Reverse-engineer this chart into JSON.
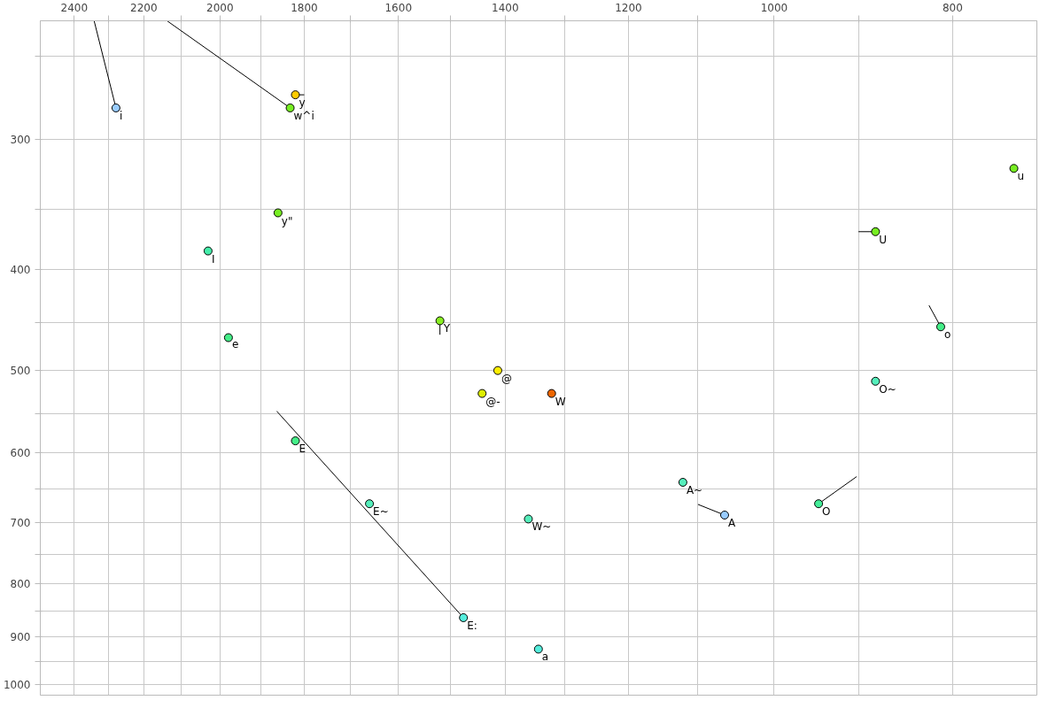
{
  "chart_data": {
    "type": "scatter",
    "log": "xy",
    "marker": "circle",
    "grid": true,
    "xlim": [
      2504,
      720
    ],
    "ylim": [
      1024,
      231
    ],
    "xticks": [
      2400,
      {
        "value": 2300,
        "label": null
      },
      2200,
      {
        "value": 2100,
        "label": null
      },
      2000,
      {
        "value": 1900,
        "label": null
      },
      1800,
      {
        "value": 1700,
        "label": null
      },
      1600,
      {
        "value": 1500,
        "label": null
      },
      1400,
      {
        "value": 1300,
        "label": null
      },
      1200,
      {
        "value": 1100,
        "label": null
      },
      1000,
      {
        "value": 900,
        "label": null
      },
      800
    ],
    "yticks": [
      {
        "value": 250,
        "label": null
      },
      300,
      {
        "value": 350,
        "label": null
      },
      400,
      {
        "value": 450,
        "label": null
      },
      500,
      {
        "value": 550,
        "label": null
      },
      600,
      {
        "value": 650,
        "label": null
      },
      700,
      {
        "value": 750,
        "label": null
      },
      800,
      {
        "value": 850,
        "label": null
      },
      900,
      {
        "value": 950,
        "label": null
      },
      1000
    ],
    "series": [
      {
        "type": "line",
        "marker": "none",
        "color": "#000000",
        "x": [
          2341,
          2278
        ],
        "values": [
          231,
          280
        ]
      },
      {
        "type": "line",
        "marker": "none",
        "color": "#000000",
        "x": [
          1820,
          1800
        ],
        "values": [
          272,
          272
        ]
      },
      {
        "type": "line",
        "marker": "none",
        "color": "#000000",
        "x": [
          2137,
          1832
        ],
        "values": [
          231,
          280
        ]
      },
      {
        "type": "line",
        "marker": "none",
        "color": "#000000",
        "x": [
          1519,
          1519
        ],
        "values": [
          448,
          462
        ]
      },
      {
        "type": "line",
        "marker": "none",
        "color": "#000000",
        "x": [
          1863,
          1475
        ],
        "values": [
          547,
          863
        ]
      },
      {
        "type": "line",
        "marker": "none",
        "color": "#000000",
        "x": [
          1100,
          1064
        ],
        "values": [
          672,
          688
        ]
      },
      {
        "type": "line",
        "marker": "none",
        "color": "#000000",
        "x": [
          902,
          946
        ],
        "values": [
          632,
          671
        ]
      },
      {
        "type": "line",
        "marker": "none",
        "color": "#000000",
        "x": [
          824,
          812
        ],
        "values": [
          433,
          454
        ]
      },
      {
        "type": "line",
        "marker": "none",
        "color": "#000000",
        "x": [
          900,
          881
        ],
        "values": [
          368,
          368
        ]
      },
      {
        "name": "i",
        "color": "#99ccff",
        "x": [
          2278
        ],
        "values": [
          280
        ]
      },
      {
        "name": "y",
        "color": "#ffcc00",
        "x": [
          1820
        ],
        "values": [
          272
        ]
      },
      {
        "name": "w^i",
        "color": "#77ee22",
        "x": [
          1832
        ],
        "values": [
          280
        ]
      },
      {
        "name": "y\"",
        "color": "#77ee22",
        "x": [
          1860
        ],
        "values": [
          353
        ]
      },
      {
        "name": "I",
        "color": "#44eeaa",
        "x": [
          2030
        ],
        "values": [
          384
        ]
      },
      {
        "name": "e",
        "color": "#44ee88",
        "x": [
          1979
        ],
        "values": [
          465
        ]
      },
      {
        "name": "Y",
        "color": "#88ee22",
        "x": [
          1519
        ],
        "values": [
          448
        ]
      },
      {
        "name": "@",
        "color": "#ffee00",
        "x": [
          1413
        ],
        "values": [
          500
        ]
      },
      {
        "name": "@-",
        "color": "#ddee00",
        "x": [
          1441
        ],
        "values": [
          526
        ]
      },
      {
        "name": "W",
        "color": "#ee6600",
        "x": [
          1321
        ],
        "values": [
          526
        ]
      },
      {
        "name": "E",
        "color": "#44ee88",
        "x": [
          1820
        ],
        "values": [
          584
        ]
      },
      {
        "name": "E~",
        "color": "#55eebb",
        "x": [
          1659
        ],
        "values": [
          671
        ]
      },
      {
        "name": "E:",
        "color": "#55eedd",
        "x": [
          1475
        ],
        "values": [
          863
        ]
      },
      {
        "name": "W~",
        "color": "#55eebb",
        "x": [
          1360
        ],
        "values": [
          694
        ]
      },
      {
        "name": "a",
        "color": "#55eedd",
        "x": [
          1343
        ],
        "values": [
          925
        ]
      },
      {
        "name": "A~",
        "color": "#55eebb",
        "x": [
          1121
        ],
        "values": [
          640
        ]
      },
      {
        "name": "A",
        "color": "#99ccff",
        "x": [
          1064
        ],
        "values": [
          688
        ]
      },
      {
        "name": "O",
        "color": "#44ee99",
        "x": [
          946
        ],
        "values": [
          671
        ]
      },
      {
        "name": "O~",
        "color": "#55eebb",
        "x": [
          881
        ],
        "values": [
          512
        ]
      },
      {
        "name": "o",
        "color": "#44ee88",
        "x": [
          812
        ],
        "values": [
          454
        ]
      },
      {
        "name": "U",
        "color": "#77ee22",
        "x": [
          881
        ],
        "values": [
          368
        ]
      },
      {
        "name": "u",
        "color": "#77ee22",
        "x": [
          741
        ],
        "values": [
          320
        ]
      }
    ]
  }
}
